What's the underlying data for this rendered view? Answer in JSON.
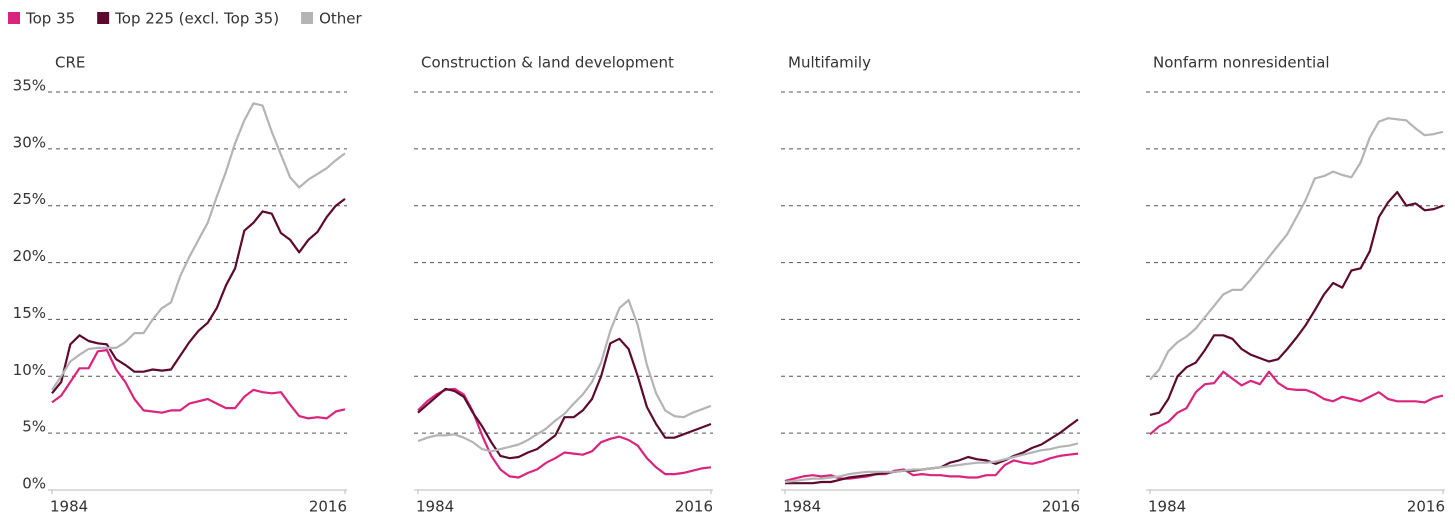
{
  "chart_data": [
    {
      "type": "line",
      "title": "CRE",
      "x": [
        1984,
        1985,
        1986,
        1987,
        1988,
        1989,
        1990,
        1991,
        1992,
        1993,
        1994,
        1995,
        1996,
        1997,
        1998,
        1999,
        2000,
        2001,
        2002,
        2003,
        2004,
        2005,
        2006,
        2007,
        2008,
        2009,
        2010,
        2011,
        2012,
        2013,
        2014,
        2015,
        2016
      ],
      "xlim": [
        1984,
        2016
      ],
      "xticks": [
        1984,
        2016
      ],
      "ylim": [
        0,
        35
      ],
      "yticks": [
        {
          "value": 0,
          "label": "0%"
        },
        {
          "value": 5,
          "label": "5%"
        },
        {
          "value": 10,
          "label": "10%"
        },
        {
          "value": 15,
          "label": "15%"
        },
        {
          "value": 20,
          "label": "20%"
        },
        {
          "value": 25,
          "label": "25%"
        },
        {
          "value": 30,
          "label": "30%"
        },
        {
          "value": 35,
          "label": "35%"
        }
      ],
      "series": [
        {
          "name": "Top 35",
          "color": "#d9257d",
          "values": [
            7.7,
            8.3,
            9.5,
            10.7,
            10.7,
            12.2,
            12.3,
            10.6,
            9.5,
            8.0,
            7.0,
            6.9,
            6.8,
            7.0,
            7.0,
            7.6,
            7.8,
            8.0,
            7.6,
            7.2,
            7.2,
            8.2,
            8.8,
            8.6,
            8.5,
            8.6,
            7.5,
            6.5,
            6.3,
            6.4,
            6.3,
            6.9,
            7.1
          ]
        },
        {
          "name": "Top 225 (excl. Top 35)",
          "color": "#5c0a2e",
          "values": [
            8.5,
            9.5,
            12.8,
            13.6,
            13.1,
            12.9,
            12.8,
            11.5,
            11.0,
            10.4,
            10.4,
            10.6,
            10.5,
            10.6,
            11.8,
            13.0,
            14.0,
            14.7,
            16.0,
            18.0,
            19.5,
            22.8,
            23.5,
            24.5,
            24.3,
            22.6,
            22.0,
            20.9,
            22.0,
            22.7,
            24.0,
            25.0,
            25.6
          ]
        },
        {
          "name": "Other",
          "color": "#b4b4b4",
          "values": [
            8.8,
            10.0,
            11.3,
            11.9,
            12.4,
            12.5,
            12.5,
            12.5,
            13.0,
            13.8,
            13.8,
            15.0,
            16.0,
            16.5,
            18.8,
            20.5,
            22.0,
            23.5,
            25.8,
            28.0,
            30.5,
            32.5,
            34.0,
            33.8,
            31.5,
            29.5,
            27.5,
            26.6,
            27.3,
            27.8,
            28.3,
            29.0,
            29.6
          ]
        }
      ]
    },
    {
      "type": "line",
      "title": "Construction & land development",
      "x": [
        1984,
        1985,
        1986,
        1987,
        1988,
        1989,
        1990,
        1991,
        1992,
        1993,
        1994,
        1995,
        1996,
        1997,
        1998,
        1999,
        2000,
        2001,
        2002,
        2003,
        2004,
        2005,
        2006,
        2007,
        2008,
        2009,
        2010,
        2011,
        2012,
        2013,
        2014,
        2015,
        2016
      ],
      "xlim": [
        1984,
        2016
      ],
      "xticks": [
        1984,
        2016
      ],
      "ylim": [
        0,
        35
      ],
      "yticks": [
        0,
        5,
        10,
        15,
        20,
        25,
        30,
        35
      ],
      "series": [
        {
          "values": [
            7.0,
            7.8,
            8.4,
            8.8,
            8.9,
            8.4,
            6.9,
            4.8,
            3.0,
            1.8,
            1.2,
            1.1,
            1.5,
            1.8,
            2.4,
            2.8,
            3.3,
            3.2,
            3.1,
            3.4,
            4.2,
            4.5,
            4.7,
            4.4,
            3.9,
            2.8,
            2.0,
            1.4,
            1.4,
            1.5,
            1.7,
            1.9,
            2.0
          ]
        },
        {
          "values": [
            6.8,
            7.5,
            8.2,
            8.9,
            8.7,
            8.2,
            6.8,
            5.6,
            4.2,
            3.0,
            2.8,
            2.9,
            3.3,
            3.6,
            4.2,
            4.8,
            6.4,
            6.4,
            7.0,
            8.0,
            10.0,
            12.9,
            13.3,
            12.4,
            10.0,
            7.3,
            5.8,
            4.6,
            4.6,
            4.9,
            5.2,
            5.5,
            5.8
          ]
        },
        {
          "values": [
            4.3,
            4.6,
            4.8,
            4.8,
            4.9,
            4.6,
            4.2,
            3.6,
            3.4,
            3.6,
            3.8,
            4.0,
            4.4,
            4.9,
            5.4,
            6.1,
            6.7,
            7.6,
            8.4,
            9.5,
            11.2,
            14.0,
            16.0,
            16.7,
            14.5,
            11.0,
            8.5,
            7.0,
            6.5,
            6.4,
            6.8,
            7.1,
            7.4
          ]
        }
      ]
    },
    {
      "type": "line",
      "title": "Multifamily",
      "x": [
        1984,
        1985,
        1986,
        1987,
        1988,
        1989,
        1990,
        1991,
        1992,
        1993,
        1994,
        1995,
        1996,
        1997,
        1998,
        1999,
        2000,
        2001,
        2002,
        2003,
        2004,
        2005,
        2006,
        2007,
        2008,
        2009,
        2010,
        2011,
        2012,
        2013,
        2014,
        2015,
        2016
      ],
      "xlim": [
        1984,
        2016
      ],
      "xticks": [
        1984,
        2016
      ],
      "ylim": [
        0,
        35
      ],
      "yticks": [
        0,
        5,
        10,
        15,
        20,
        25,
        30,
        35
      ],
      "series": [
        {
          "values": [
            0.8,
            1.0,
            1.2,
            1.3,
            1.2,
            1.3,
            1.0,
            1.0,
            1.1,
            1.2,
            1.4,
            1.4,
            1.7,
            1.8,
            1.3,
            1.4,
            1.3,
            1.3,
            1.2,
            1.2,
            1.1,
            1.1,
            1.3,
            1.3,
            2.2,
            2.6,
            2.4,
            2.3,
            2.5,
            2.8,
            3.0,
            3.1,
            3.2
          ]
        },
        {
          "values": [
            0.6,
            0.6,
            0.6,
            0.6,
            0.7,
            0.7,
            0.9,
            1.1,
            1.2,
            1.3,
            1.4,
            1.5,
            1.6,
            1.7,
            1.7,
            1.8,
            1.9,
            2.0,
            2.4,
            2.6,
            2.9,
            2.7,
            2.6,
            2.3,
            2.6,
            3.0,
            3.3,
            3.7,
            4.0,
            4.5,
            5.0,
            5.6,
            6.2
          ]
        },
        {
          "values": [
            0.7,
            0.8,
            0.9,
            1.0,
            1.0,
            1.1,
            1.2,
            1.4,
            1.5,
            1.6,
            1.6,
            1.6,
            1.6,
            1.7,
            1.8,
            1.8,
            1.9,
            2.0,
            2.1,
            2.2,
            2.3,
            2.4,
            2.4,
            2.5,
            2.7,
            2.9,
            3.1,
            3.3,
            3.5,
            3.6,
            3.8,
            3.9,
            4.1
          ]
        }
      ]
    },
    {
      "type": "line",
      "title": "Nonfarm nonresidential",
      "x": [
        1984,
        1985,
        1986,
        1987,
        1988,
        1989,
        1990,
        1991,
        1992,
        1993,
        1994,
        1995,
        1996,
        1997,
        1998,
        1999,
        2000,
        2001,
        2002,
        2003,
        2004,
        2005,
        2006,
        2007,
        2008,
        2009,
        2010,
        2011,
        2012,
        2013,
        2014,
        2015,
        2016
      ],
      "xlim": [
        1984,
        2016
      ],
      "xticks": [
        1984,
        2016
      ],
      "ylim": [
        0,
        35
      ],
      "yticks": [
        0,
        5,
        10,
        15,
        20,
        25,
        30,
        35
      ],
      "series": [
        {
          "values": [
            4.9,
            5.6,
            6.0,
            6.8,
            7.2,
            8.6,
            9.3,
            9.4,
            10.4,
            9.8,
            9.2,
            9.6,
            9.3,
            10.4,
            9.4,
            8.9,
            8.8,
            8.8,
            8.5,
            8.0,
            7.8,
            8.2,
            8.0,
            7.8,
            8.2,
            8.6,
            8.0,
            7.8,
            7.8,
            7.8,
            7.7,
            8.1,
            8.3
          ]
        },
        {
          "values": [
            6.6,
            6.8,
            8.0,
            10.0,
            10.8,
            11.2,
            12.3,
            13.6,
            13.6,
            13.3,
            12.4,
            11.9,
            11.6,
            11.3,
            11.5,
            12.4,
            13.4,
            14.5,
            15.8,
            17.2,
            18.2,
            17.8,
            19.3,
            19.5,
            21.0,
            24.0,
            25.3,
            26.2,
            25.0,
            25.2,
            24.6,
            24.7,
            25.0
          ]
        },
        {
          "values": [
            9.7,
            10.6,
            12.2,
            13.0,
            13.5,
            14.2,
            15.2,
            16.2,
            17.2,
            17.6,
            17.6,
            18.5,
            19.5,
            20.5,
            21.5,
            22.5,
            24.0,
            25.5,
            27.4,
            27.6,
            28.0,
            27.7,
            27.5,
            28.8,
            31.0,
            32.4,
            32.7,
            32.6,
            32.5,
            31.8,
            31.2,
            31.3,
            31.5
          ]
        }
      ]
    }
  ]
}
